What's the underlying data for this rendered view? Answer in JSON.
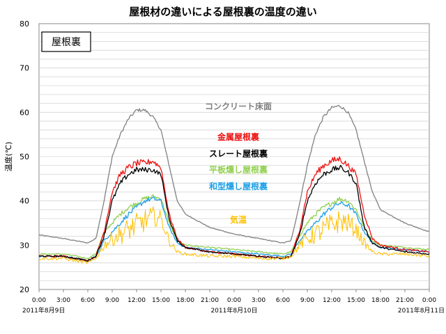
{
  "chart_data": {
    "type": "line",
    "title": "屋根材の違いによる屋根裏の温度の違い",
    "panel_label": "屋根裏",
    "ylabel": "温度(℃)",
    "xlabel": "",
    "ylim": [
      20,
      80
    ],
    "yticks": [
      20,
      30,
      40,
      50,
      60,
      70,
      80
    ],
    "xlim": [
      0,
      48
    ],
    "xtick_labels": [
      "0:00",
      "3:00",
      "6:00",
      "9:00",
      "12:00",
      "15:00",
      "18:00",
      "21:00",
      "0:00",
      "3:00",
      "6:00",
      "9:00",
      "12:00",
      "15:00",
      "18:00",
      "21:00",
      "0:00"
    ],
    "date_labels": [
      "2011年8月9日",
      "2011年8月10日",
      "2011年8月11日"
    ],
    "grid": true,
    "hours": [
      0,
      3,
      6,
      7,
      8,
      9,
      10,
      11,
      12,
      13,
      14,
      15,
      16,
      17,
      18,
      21,
      24,
      27,
      30,
      31,
      32,
      33,
      34,
      35,
      36,
      37,
      38,
      39,
      40,
      41,
      42,
      45,
      48
    ],
    "series": [
      {
        "name": "コンクリート床面",
        "color": "#808080",
        "values": [
          32.3,
          31.5,
          30.5,
          31.5,
          40,
          50,
          55,
          58.5,
          60.5,
          60.5,
          59,
          56,
          48,
          40,
          37,
          34,
          32.5,
          31.5,
          30.5,
          31,
          39,
          48,
          55,
          59,
          61,
          61.5,
          60,
          56,
          49,
          42,
          38,
          35,
          33
        ]
      },
      {
        "name": "金属屋根裏",
        "color": "#ee1111",
        "values": [
          27.5,
          27.5,
          26.5,
          27.5,
          33,
          42,
          46,
          47.5,
          48.5,
          48.5,
          49,
          47.5,
          37,
          31.5,
          29.5,
          28.5,
          28,
          27.5,
          27,
          27.5,
          33,
          42,
          46,
          48,
          49,
          49.5,
          48,
          46,
          37,
          31.5,
          30,
          29,
          28.5
        ]
      },
      {
        "name": "スレート屋根裏",
        "color": "#000000",
        "values": [
          27.5,
          27.5,
          26.5,
          27.5,
          32,
          40,
          44,
          46,
          47,
          47,
          47,
          46,
          36,
          31,
          29.5,
          28.5,
          28,
          27.5,
          27,
          27.5,
          32,
          40,
          44,
          46,
          47,
          47.5,
          46.5,
          44,
          34,
          30.5,
          29.5,
          28.5,
          28
        ]
      },
      {
        "name": "平板燻し屋根裏",
        "color": "#92d050",
        "values": [
          28,
          28,
          27,
          28,
          33,
          35,
          37,
          38.5,
          39.5,
          40.5,
          41,
          40.5,
          35,
          31,
          30,
          29.5,
          29,
          28.5,
          28,
          28.5,
          32,
          35,
          37,
          38.5,
          39.5,
          40.5,
          40,
          38,
          34,
          31,
          30,
          29.5,
          29
        ]
      },
      {
        "name": "和型燻し屋根裏",
        "color": "#1ea0e6",
        "values": [
          27.5,
          27.5,
          26.5,
          27.5,
          31,
          33,
          35,
          37,
          38.5,
          40,
          40.5,
          40,
          34,
          30.5,
          29.5,
          29,
          28.5,
          28,
          27.5,
          28,
          31,
          33,
          35,
          37,
          38.5,
          39.5,
          39,
          37,
          33,
          30.5,
          29.5,
          29,
          28.5
        ]
      },
      {
        "name": "気温",
        "color": "#ffc000",
        "values": [
          27,
          27,
          26,
          27,
          30,
          31.5,
          32.5,
          33.5,
          34.5,
          35.5,
          36.5,
          36,
          31,
          28.5,
          28,
          27.5,
          27.5,
          27,
          27,
          27.5,
          30,
          31.5,
          32.5,
          33.5,
          34.5,
          35.5,
          35,
          33.5,
          30.5,
          28.5,
          28,
          28,
          27.5
        ]
      }
    ]
  }
}
